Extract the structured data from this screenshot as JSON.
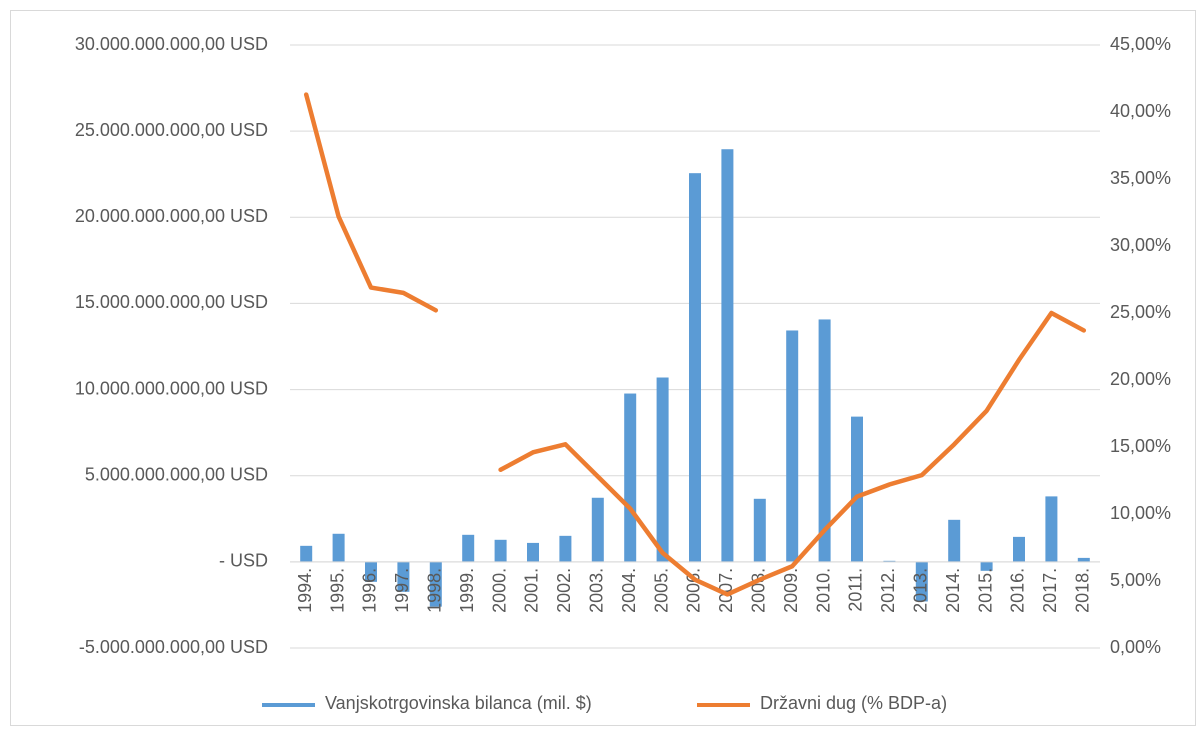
{
  "chart_data": {
    "type": "bar-line",
    "categories": [
      "1994.",
      "1995.",
      "1996.",
      "1997.",
      "1998.",
      "1999.",
      "2000.",
      "2001.",
      "2002.",
      "2003.",
      "2004.",
      "2005.",
      "2006.",
      "2007.",
      "2008.",
      "2009.",
      "2010.",
      "2011.",
      "2012.",
      "2013.",
      "2014.",
      "2015.",
      "2016.",
      "2017.",
      "2018."
    ],
    "series": [
      {
        "name": "Vanjskotrgovinska bilanca (mil. $)",
        "color": "#5b9bd5",
        "type": "bar",
        "values": [
          930000000,
          1630000000,
          -1160000000,
          -1740000000,
          -2600000000,
          1570000000,
          1280000000,
          1100000000,
          1510000000,
          3720000000,
          9770000000,
          10700000000,
          22560000000,
          23950000000,
          3660000000,
          13430000000,
          14070000000,
          8430000000,
          60000000,
          -2300000000,
          2440000000,
          -520000000,
          1450000000,
          3800000000,
          230000000
        ]
      },
      {
        "name": "Državni dug (% BDP-a)",
        "color": "#ed7d31",
        "type": "line",
        "axis": "y2",
        "values": [
          41.3,
          32.2,
          26.9,
          26.5,
          25.2,
          null,
          13.3,
          14.6,
          15.2,
          12.8,
          10.4,
          7.1,
          5.1,
          4.0,
          5.1,
          6.1,
          8.8,
          11.3,
          12.2,
          12.9,
          15.2,
          17.7,
          21.5,
          25.0,
          23.7
        ]
      }
    ],
    "ylim": [
      -5000000000,
      30000000000
    ],
    "yticks": [
      {
        "value": -5000000000,
        "label": "-5.000.000.000,00 USD"
      },
      {
        "value": 0,
        "label": "-  USD"
      },
      {
        "value": 5000000000,
        "label": "5.000.000.000,00 USD"
      },
      {
        "value": 10000000000,
        "label": "10.000.000.000,00 USD"
      },
      {
        "value": 15000000000,
        "label": "15.000.000.000,00 USD"
      },
      {
        "value": 20000000000,
        "label": "20.000.000.000,00 USD"
      },
      {
        "value": 25000000000,
        "label": "25.000.000.000,00 USD"
      },
      {
        "value": 30000000000,
        "label": "30.000.000.000,00 USD"
      }
    ],
    "y2lim": [
      0,
      45
    ],
    "y2ticks": [
      {
        "value": 0,
        "label": "0,00%"
      },
      {
        "value": 5,
        "label": "5,00%"
      },
      {
        "value": 10,
        "label": "10,00%"
      },
      {
        "value": 15,
        "label": "15,00%"
      },
      {
        "value": 20,
        "label": "20,00%"
      },
      {
        "value": 25,
        "label": "25,00%"
      },
      {
        "value": 30,
        "label": "30,00%"
      },
      {
        "value": 35,
        "label": "35,00%"
      },
      {
        "value": 40,
        "label": "40,00%"
      },
      {
        "value": 45,
        "label": "45,00%"
      }
    ],
    "grid": true,
    "legend": "bottom"
  }
}
